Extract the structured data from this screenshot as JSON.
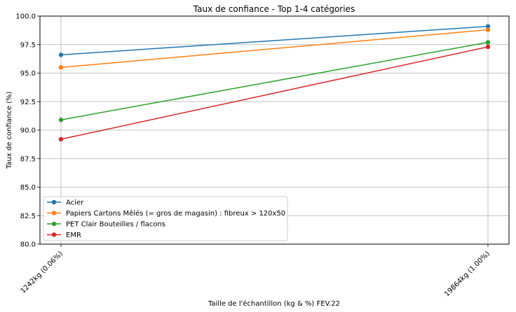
{
  "chart_data": {
    "type": "line",
    "title": "Taux de confiance - Top 1-4 catégories",
    "xlabel": "Taille de l'échantillon (kg & %) FEV.22",
    "ylabel": "Taux de confiance (%)",
    "categories": [
      "1242kg (0.06%)",
      "19864kg (1.00%)"
    ],
    "ylim": [
      80.0,
      100.0
    ],
    "yticks": [
      "80.0",
      "82.5",
      "85.0",
      "87.5",
      "90.0",
      "92.5",
      "95.0",
      "97.5",
      "100.0"
    ],
    "grid": true,
    "legend_position": "bottom-left",
    "series": [
      {
        "name": "Acier",
        "values": [
          96.6,
          99.1
        ],
        "color": "#1f77b4"
      },
      {
        "name": "Papiers Cartons Mêlés (= gros de magasin) : fibreux > 120x50",
        "values": [
          95.5,
          98.8
        ],
        "color": "#ff7f0e"
      },
      {
        "name": "PET Clair Bouteilles / flacons",
        "values": [
          90.9,
          97.7
        ],
        "color": "#2ca02c"
      },
      {
        "name": "EMR",
        "values": [
          89.2,
          97.3
        ],
        "color": "#d62728"
      }
    ]
  }
}
